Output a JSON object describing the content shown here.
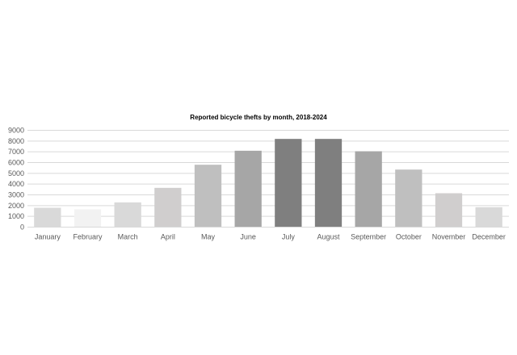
{
  "chart_data": {
    "type": "bar",
    "title": "Reported bicycle thefts by month, 2018-2024",
    "xlabel": "",
    "ylabel": "",
    "categories": [
      "January",
      "February",
      "March",
      "April",
      "May",
      "June",
      "July",
      "August",
      "September",
      "October",
      "November",
      "December"
    ],
    "values": [
      1800,
      1650,
      2300,
      3650,
      5800,
      7100,
      8200,
      8200,
      7050,
      5350,
      3150,
      1850
    ],
    "bar_colors": [
      "#d9d9d9",
      "#f2f2f2",
      "#d9d9d9",
      "#d0cece",
      "#bfbfbf",
      "#a6a6a6",
      "#7f7f7f",
      "#7f7f7f",
      "#a6a6a6",
      "#bfbfbf",
      "#d0cece",
      "#d9d9d9"
    ],
    "ylim": [
      0,
      9000
    ],
    "y_ticks": [
      0,
      1000,
      2000,
      3000,
      4000,
      5000,
      6000,
      7000,
      8000,
      9000
    ],
    "grid": true,
    "legend": "none"
  }
}
